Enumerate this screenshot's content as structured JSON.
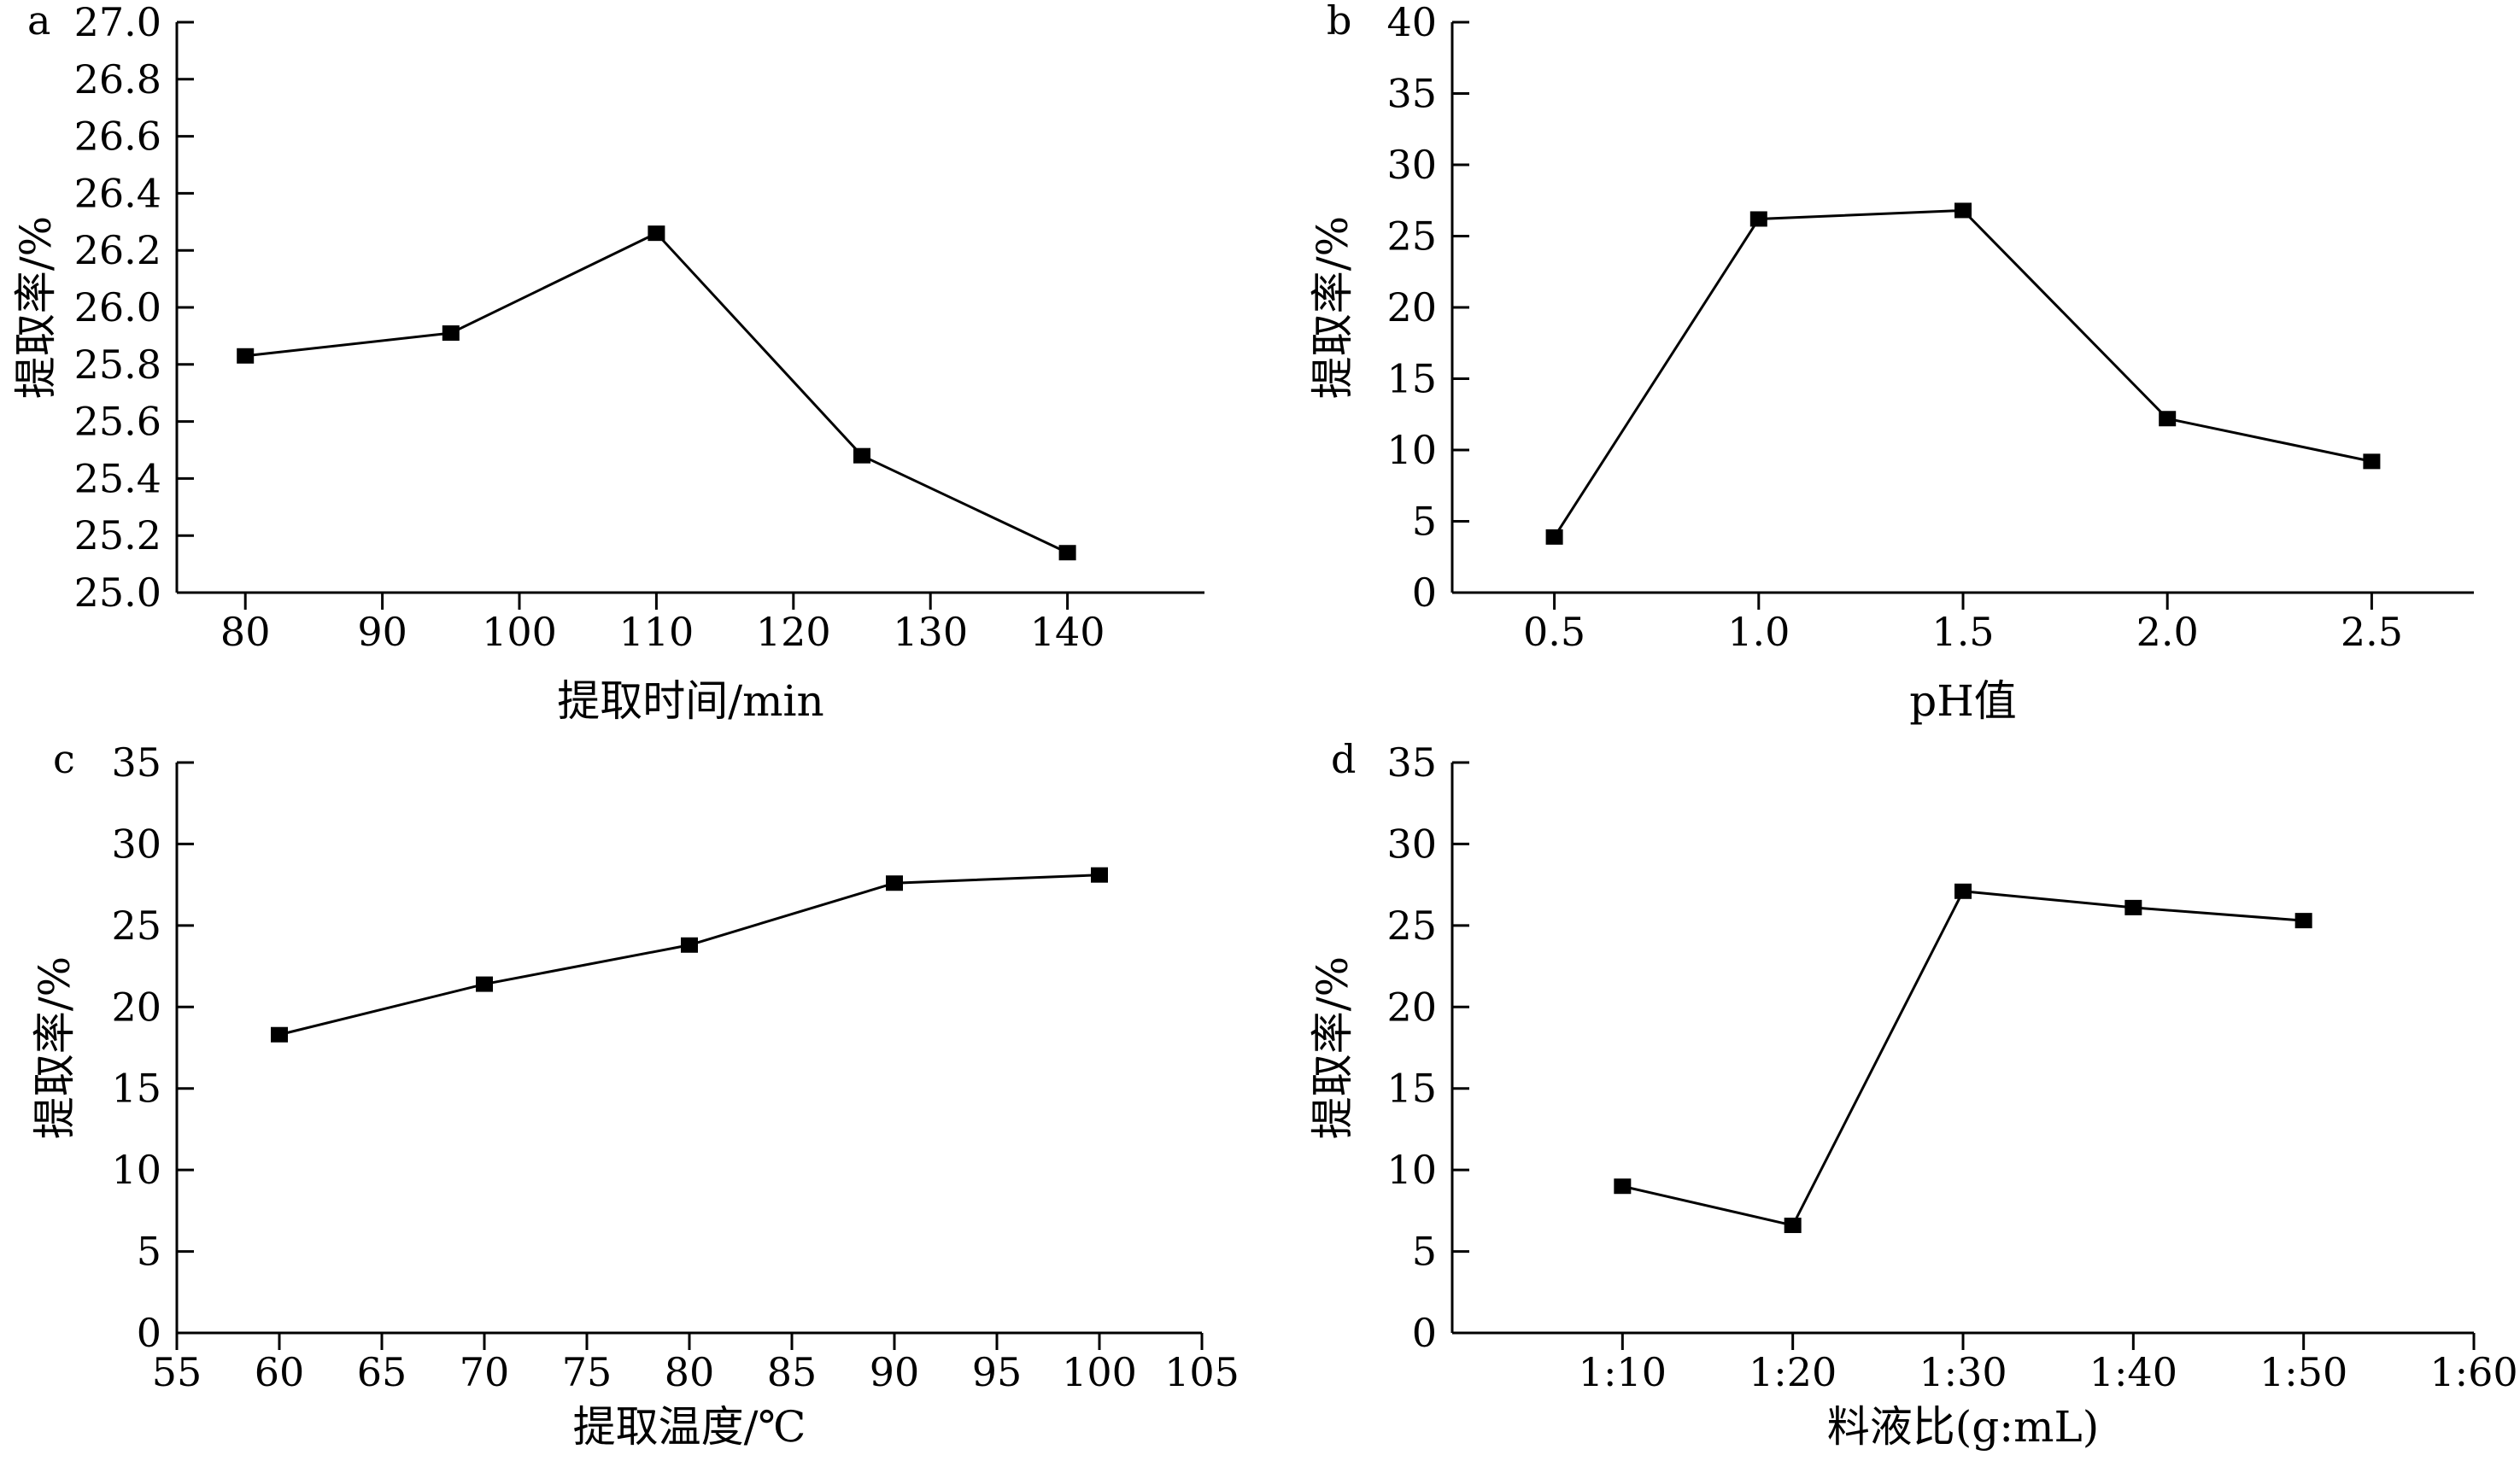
{
  "chart_data": [
    {
      "type": "line",
      "panel_label": "a",
      "xlabel": "提取时间/min",
      "ylabel": "提取率/%",
      "x": [
        80,
        95,
        110,
        125,
        140
      ],
      "values": [
        25.83,
        25.91,
        26.26,
        25.48,
        25.14
      ],
      "xlim": [
        75,
        150
      ],
      "ylim": [
        25.0,
        27.0
      ],
      "xticks": [
        80,
        90,
        100,
        110,
        120,
        130,
        140
      ],
      "xtick_labels": [
        "80",
        "90",
        "100",
        "110",
        "120",
        "130",
        "140"
      ],
      "yticks": [
        25.0,
        25.2,
        25.4,
        25.6,
        25.8,
        26.0,
        26.2,
        26.4,
        26.6,
        26.8,
        27.0
      ],
      "ytick_labels": [
        "25.0",
        "25.2",
        "25.4",
        "25.6",
        "25.8",
        "26.0",
        "26.2",
        "26.4",
        "26.6",
        "26.8",
        "27.0"
      ],
      "grid": false
    },
    {
      "type": "line",
      "panel_label": "b",
      "xlabel": "pH值",
      "ylabel": "提取率/%",
      "x": [
        0.5,
        1.0,
        1.5,
        2.0,
        2.5
      ],
      "values": [
        3.9,
        26.2,
        26.8,
        12.2,
        9.2
      ],
      "xlim": [
        0.25,
        2.75
      ],
      "ylim": [
        0,
        40
      ],
      "xticks": [
        0.5,
        1.0,
        1.5,
        2.0,
        2.5
      ],
      "xtick_labels": [
        "0.5",
        "1.0",
        "1.5",
        "2.0",
        "2.5"
      ],
      "yticks": [
        0,
        5,
        10,
        15,
        20,
        25,
        30,
        35,
        40
      ],
      "ytick_labels": [
        "0",
        "5",
        "10",
        "15",
        "20",
        "25",
        "30",
        "35",
        "40"
      ],
      "grid": false
    },
    {
      "type": "line",
      "panel_label": "c",
      "xlabel": "提取温度/℃",
      "ylabel": "提取率/%",
      "x": [
        60,
        70,
        80,
        90,
        100
      ],
      "values": [
        18.3,
        21.4,
        23.8,
        27.6,
        28.1
      ],
      "xlim": [
        55,
        105
      ],
      "ylim": [
        0,
        35
      ],
      "xticks": [
        55,
        60,
        65,
        70,
        75,
        80,
        85,
        90,
        95,
        100,
        105
      ],
      "xtick_labels": [
        "55",
        "60",
        "65",
        "70",
        "75",
        "80",
        "85",
        "90",
        "95",
        "100",
        "105"
      ],
      "yticks": [
        0,
        5,
        10,
        15,
        20,
        25,
        30,
        35
      ],
      "ytick_labels": [
        "0",
        "5",
        "10",
        "15",
        "20",
        "25",
        "30",
        "35"
      ],
      "grid": false
    },
    {
      "type": "line",
      "panel_label": "d",
      "xlabel": "料液比(g:mL)",
      "ylabel": "提取率/%",
      "x": [
        1,
        2,
        3,
        4,
        5
      ],
      "values": [
        9.0,
        6.6,
        27.1,
        26.1,
        25.3
      ],
      "xlim": [
        0,
        6
      ],
      "ylim": [
        0,
        35
      ],
      "xticks": [
        1,
        2,
        3,
        4,
        5,
        6
      ],
      "xtick_labels": [
        "1:10",
        "1:20",
        "1:30",
        "1:40",
        "1:50",
        "1:60"
      ],
      "yticks": [
        0,
        5,
        10,
        15,
        20,
        25,
        30,
        35
      ],
      "ytick_labels": [
        "0",
        "5",
        "10",
        "15",
        "20",
        "25",
        "30",
        "35"
      ],
      "grid": false
    }
  ]
}
